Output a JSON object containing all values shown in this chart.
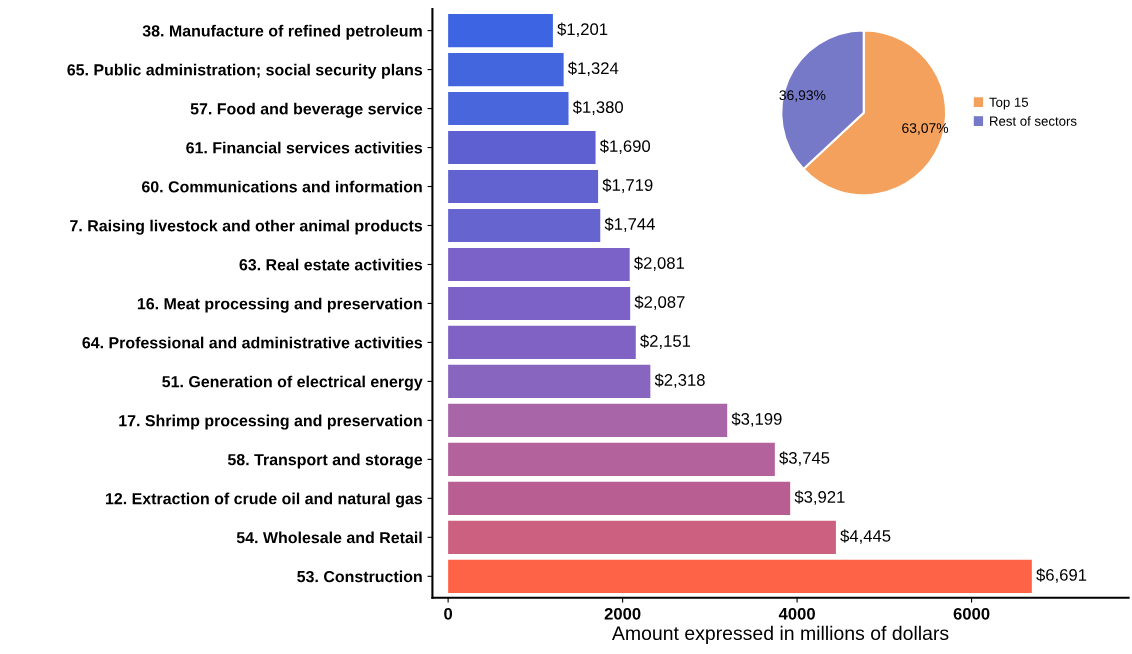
{
  "chart_data": [
    {
      "type": "bar",
      "orientation": "horizontal",
      "xlabel": "Amount expressed in millions of dollars",
      "categories": [
        "38. Manufacture of refined petroleum",
        "65. Public administration; social security plans",
        "57. Food and beverage service",
        "61. Financial services activities",
        "60. Communications and information",
        "7. Raising livestock and other animal products",
        "63. Real estate activities",
        "16. Meat processing and preservation",
        "64. Professional and administrative activities",
        "51. Generation of electrical energy",
        "17. Shrimp processing and preservation",
        "58. Transport and storage",
        "12. Extraction of crude oil and natural gas",
        "54. Wholesale and Retail",
        "53. Construction"
      ],
      "values": [
        1201,
        1324,
        1380,
        1690,
        1719,
        1744,
        2081,
        2087,
        2151,
        2318,
        3199,
        3745,
        3921,
        4445,
        6691
      ],
      "value_labels": [
        "$1,201",
        "$1,324",
        "$1,380",
        "$1,690",
        "$1,719",
        "$1,744",
        "$2,081",
        "$2,087",
        "$2,151",
        "$2,318",
        "$3,199",
        "$3,745",
        "$3,921",
        "$4,445",
        "$6,691"
      ],
      "colors": [
        "#3d64e2",
        "#4366de",
        "#4a66dc",
        "#5e60d2",
        "#6262d0",
        "#6664cf",
        "#7a62c8",
        "#7c62c6",
        "#7f62c4",
        "#8866c0",
        "#a866a8",
        "#b4629c",
        "#b85e92",
        "#cc6080",
        "#ff6347"
      ],
      "xlim": [
        -180,
        7800
      ],
      "xticks": [
        0,
        2000,
        4000,
        6000
      ],
      "grid": false
    },
    {
      "type": "pie",
      "categories": [
        "Top 15",
        "Rest of sectors"
      ],
      "values": [
        63.07,
        36.93
      ],
      "value_labels": [
        "63,07%",
        "36,93%"
      ],
      "colors": [
        "#f4a15d",
        "#7678c8"
      ],
      "legend": "right"
    }
  ]
}
